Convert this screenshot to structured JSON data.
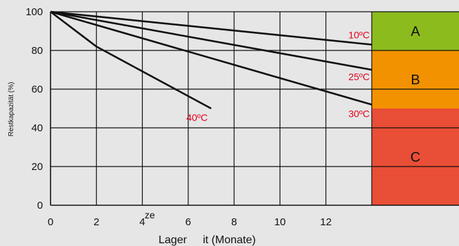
{
  "chart_data": {
    "type": "line",
    "xlabel_part1": "Lager",
    "xlabel_part2": "it (Monate)",
    "xlabel_sup": "ze",
    "ylabel": "Restkapazität (%)",
    "xlim": [
      0,
      14
    ],
    "ylim": [
      0,
      100
    ],
    "x_ticks": [
      0,
      2,
      4,
      6,
      8,
      10,
      12
    ],
    "y_ticks": [
      0,
      20,
      40,
      60,
      80,
      100
    ],
    "grid": true,
    "series": [
      {
        "name": "10ºC",
        "x": [
          0,
          14
        ],
        "y": [
          100,
          83
        ],
        "color": "#111111",
        "label_color": "#e3001b"
      },
      {
        "name": "25ºC",
        "x": [
          0,
          14
        ],
        "y": [
          100,
          70
        ],
        "color": "#111111",
        "label_color": "#e3001b"
      },
      {
        "name": "30ºC",
        "x": [
          0,
          14
        ],
        "y": [
          100,
          52
        ],
        "color": "#111111",
        "label_color": "#e3001b"
      },
      {
        "name": "40ºC",
        "x": [
          0,
          2,
          7
        ],
        "y": [
          100,
          82,
          50
        ],
        "color": "#111111",
        "label_color": "#e3001b"
      }
    ],
    "zones": [
      {
        "label": "A",
        "from": 80,
        "to": 100,
        "color": "#8cbb1e"
      },
      {
        "label": "B",
        "from": 50,
        "to": 80,
        "color": "#f39200"
      },
      {
        "label": "C",
        "from": 0,
        "to": 50,
        "color": "#e94e36"
      }
    ]
  }
}
